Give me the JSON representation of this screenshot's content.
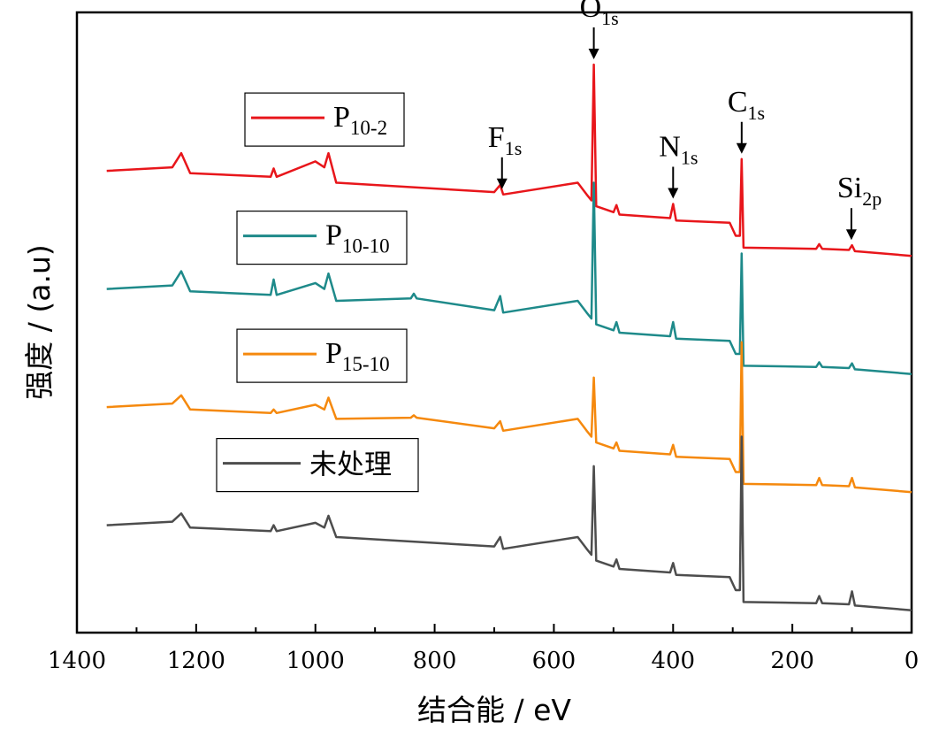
{
  "chart_data": {
    "type": "line",
    "title": "",
    "xlabel": "结合能 / eV",
    "ylabel": "强度 / (a.u)",
    "xlim": [
      1400,
      0
    ],
    "x_reversed": true,
    "x_ticks": [
      1400,
      1200,
      1000,
      800,
      600,
      400,
      200,
      0
    ],
    "y_ticks_shown": false,
    "grid": false,
    "legend_placement": "per-series boxes, left of each curve",
    "series": [
      {
        "name": "P10-2",
        "label_main": "P",
        "label_sub": "10-2",
        "color": "#e8161b",
        "offset": 3.0,
        "points": [
          [
            1350,
            0.4
          ],
          [
            1240,
            0.43
          ],
          [
            1225,
            0.55
          ],
          [
            1210,
            0.38
          ],
          [
            1075,
            0.35
          ],
          [
            1070,
            0.42
          ],
          [
            1065,
            0.35
          ],
          [
            1000,
            0.48
          ],
          [
            985,
            0.43
          ],
          [
            978,
            0.55
          ],
          [
            965,
            0.3
          ],
          [
            700,
            0.22
          ],
          [
            690,
            0.28
          ],
          [
            685,
            0.2
          ],
          [
            560,
            0.3
          ],
          [
            545,
            0.2
          ],
          [
            537,
            0.15
          ],
          [
            533,
            1.3
          ],
          [
            529,
            0.1
          ],
          [
            500,
            0.05
          ],
          [
            495,
            0.11
          ],
          [
            490,
            0.03
          ],
          [
            405,
            0.0
          ],
          [
            400,
            0.12
          ],
          [
            395,
            -0.02
          ],
          [
            305,
            -0.04
          ],
          [
            295,
            -0.15
          ],
          [
            288,
            -0.15
          ],
          [
            285,
            0.5
          ],
          [
            282,
            -0.25
          ],
          [
            160,
            -0.26
          ],
          [
            155,
            -0.22
          ],
          [
            150,
            -0.26
          ],
          [
            105,
            -0.27
          ],
          [
            100,
            -0.23
          ],
          [
            95,
            -0.28
          ],
          [
            0,
            -0.32
          ]
        ]
      },
      {
        "name": "P10-10",
        "label_main": "P",
        "label_sub": "10-10",
        "color": "#1e8a8a",
        "offset": 2.0,
        "points": [
          [
            1350,
            0.4
          ],
          [
            1240,
            0.43
          ],
          [
            1225,
            0.55
          ],
          [
            1210,
            0.38
          ],
          [
            1075,
            0.35
          ],
          [
            1070,
            0.48
          ],
          [
            1065,
            0.35
          ],
          [
            1000,
            0.45
          ],
          [
            985,
            0.4
          ],
          [
            978,
            0.53
          ],
          [
            965,
            0.3
          ],
          [
            840,
            0.32
          ],
          [
            835,
            0.36
          ],
          [
            830,
            0.32
          ],
          [
            700,
            0.22
          ],
          [
            690,
            0.34
          ],
          [
            685,
            0.2
          ],
          [
            560,
            0.3
          ],
          [
            545,
            0.2
          ],
          [
            537,
            0.15
          ],
          [
            533,
            1.3
          ],
          [
            529,
            0.1
          ],
          [
            500,
            0.05
          ],
          [
            495,
            0.12
          ],
          [
            490,
            0.03
          ],
          [
            405,
            0.0
          ],
          [
            400,
            0.12
          ],
          [
            395,
            -0.02
          ],
          [
            305,
            -0.04
          ],
          [
            295,
            -0.15
          ],
          [
            288,
            -0.15
          ],
          [
            285,
            0.7
          ],
          [
            282,
            -0.25
          ],
          [
            160,
            -0.26
          ],
          [
            155,
            -0.22
          ],
          [
            150,
            -0.26
          ],
          [
            105,
            -0.27
          ],
          [
            100,
            -0.23
          ],
          [
            95,
            -0.28
          ],
          [
            0,
            -0.32
          ]
        ]
      },
      {
        "name": "P15-10",
        "label_main": "P",
        "label_sub": "15-10",
        "color": "#f5890e",
        "offset": 1.0,
        "points": [
          [
            1350,
            0.4
          ],
          [
            1240,
            0.43
          ],
          [
            1225,
            0.5
          ],
          [
            1210,
            0.38
          ],
          [
            1075,
            0.35
          ],
          [
            1070,
            0.38
          ],
          [
            1065,
            0.35
          ],
          [
            1000,
            0.42
          ],
          [
            985,
            0.38
          ],
          [
            978,
            0.48
          ],
          [
            965,
            0.3
          ],
          [
            840,
            0.31
          ],
          [
            835,
            0.33
          ],
          [
            830,
            0.31
          ],
          [
            700,
            0.22
          ],
          [
            690,
            0.28
          ],
          [
            685,
            0.2
          ],
          [
            560,
            0.3
          ],
          [
            545,
            0.2
          ],
          [
            537,
            0.15
          ],
          [
            533,
            0.65
          ],
          [
            529,
            0.1
          ],
          [
            500,
            0.05
          ],
          [
            495,
            0.1
          ],
          [
            490,
            0.03
          ],
          [
            405,
            0.0
          ],
          [
            400,
            0.08
          ],
          [
            395,
            -0.02
          ],
          [
            305,
            -0.04
          ],
          [
            295,
            -0.15
          ],
          [
            288,
            -0.15
          ],
          [
            285,
            0.95
          ],
          [
            282,
            -0.25
          ],
          [
            160,
            -0.26
          ],
          [
            155,
            -0.2
          ],
          [
            150,
            -0.26
          ],
          [
            105,
            -0.27
          ],
          [
            100,
            -0.2
          ],
          [
            95,
            -0.28
          ],
          [
            0,
            -0.32
          ]
        ]
      },
      {
        "name": "未处理",
        "label_main": "未处理",
        "label_sub": "",
        "color": "#4d4d4d",
        "offset": 0.0,
        "points": [
          [
            1350,
            0.4
          ],
          [
            1240,
            0.43
          ],
          [
            1225,
            0.5
          ],
          [
            1210,
            0.38
          ],
          [
            1075,
            0.35
          ],
          [
            1070,
            0.4
          ],
          [
            1065,
            0.35
          ],
          [
            1000,
            0.42
          ],
          [
            985,
            0.38
          ],
          [
            978,
            0.48
          ],
          [
            965,
            0.3
          ],
          [
            700,
            0.22
          ],
          [
            690,
            0.3
          ],
          [
            685,
            0.2
          ],
          [
            560,
            0.3
          ],
          [
            545,
            0.2
          ],
          [
            537,
            0.15
          ],
          [
            533,
            0.9
          ],
          [
            529,
            0.1
          ],
          [
            500,
            0.05
          ],
          [
            495,
            0.11
          ],
          [
            490,
            0.03
          ],
          [
            405,
            0.0
          ],
          [
            400,
            0.08
          ],
          [
            395,
            -0.02
          ],
          [
            305,
            -0.04
          ],
          [
            295,
            -0.15
          ],
          [
            288,
            -0.15
          ],
          [
            285,
            1.15
          ],
          [
            282,
            -0.25
          ],
          [
            160,
            -0.26
          ],
          [
            155,
            -0.2
          ],
          [
            150,
            -0.26
          ],
          [
            105,
            -0.27
          ],
          [
            100,
            -0.16
          ],
          [
            95,
            -0.28
          ],
          [
            0,
            -0.32
          ]
        ]
      }
    ],
    "annotations": [
      {
        "main": "O",
        "sub": "1s",
        "x": 533
      },
      {
        "main": "F",
        "sub": "1s",
        "x": 687
      },
      {
        "main": "N",
        "sub": "1s",
        "x": 400
      },
      {
        "main": "C",
        "sub": "1s",
        "x": 285
      },
      {
        "main": "Si",
        "sub": "2p",
        "x": 101
      }
    ]
  }
}
